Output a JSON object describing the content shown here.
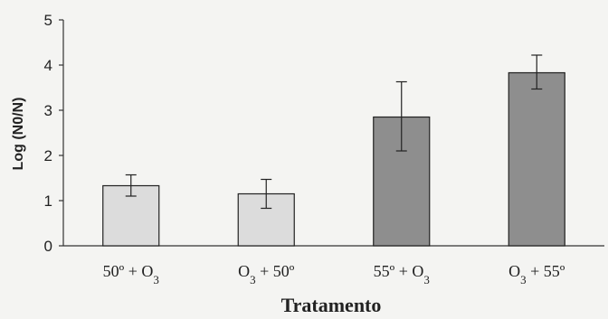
{
  "chart_data": {
    "type": "bar",
    "categories": [
      "50º + O3",
      "O3 + 50º",
      "55º + O3",
      "O3 + 55º"
    ],
    "category_labels": [
      {
        "pre": "50º + O",
        "sub": "3",
        "post": ""
      },
      {
        "pre": "O",
        "sub": "3",
        "post": " + 50º"
      },
      {
        "pre": "55º + O",
        "sub": "3",
        "post": ""
      },
      {
        "pre": "O",
        "sub": "3",
        "post": " + 55º"
      }
    ],
    "values": [
      1.33,
      1.15,
      2.85,
      3.83
    ],
    "error_low": [
      1.1,
      0.83,
      2.1,
      3.47
    ],
    "error_high": [
      1.57,
      1.47,
      3.63,
      4.22
    ],
    "bar_colors": [
      "#dcdcdc",
      "#dcdcdc",
      "#8e8e8e",
      "#8e8e8e"
    ],
    "xlabel": "Tratamento",
    "ylabel": "Log (N0/N)",
    "ylim": [
      0,
      5
    ],
    "yticks": [
      "0",
      "1",
      "2",
      "3",
      "4",
      "5"
    ],
    "grid": false
  }
}
